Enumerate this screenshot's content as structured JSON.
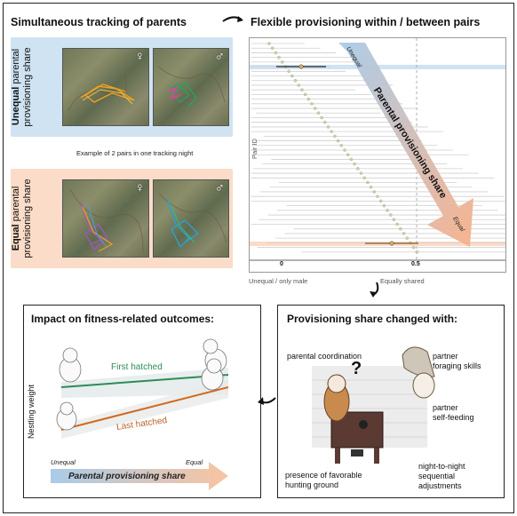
{
  "headings": {
    "tracking": "Simultaneous tracking of parents",
    "flexible": "Flexible provisioning within / between pairs"
  },
  "unequal_box": {
    "label_bold": "Unequal",
    "label_rest": " parental",
    "label_line2": "provisioning share",
    "female_symbol": "♀",
    "male_symbol": "♂",
    "bg_color": "#cfe3f2"
  },
  "caption": "Example of 2 pairs in one tracking night",
  "equal_box": {
    "label_bold": "Equal",
    "label_rest": " parental",
    "label_line2": "provisioning share",
    "female_symbol": "♀",
    "male_symbol": "♂",
    "bg_color": "#fbdcc8"
  },
  "plot": {
    "y_label": "Pair ID",
    "arrow_start": "Unequal",
    "arrow_title": "Parental provisioning share",
    "arrow_end": "Equal",
    "x_ticks": [
      "0",
      "0.5"
    ],
    "x_left_label": "Unequal / only male",
    "x_right_label": "Equally shared"
  },
  "fitness_panel": {
    "title": "Impact on fitness-related outcomes:",
    "y_label": "Nestling weight",
    "first": "First hatched",
    "last": "Last hatched",
    "scale_left": "Unequal",
    "scale_right": "Equal",
    "arrow_label": "Parental provisioning share",
    "first_color": "#2e8b57",
    "last_color": "#d2691e"
  },
  "changed_panel": {
    "title": "Provisioning share changed with:",
    "coordination": "parental coordination",
    "partner_foraging_1": "partner",
    "partner_foraging_2": "foraging skills",
    "partner_self_1": "partner",
    "partner_self_2": "self-feeding",
    "hunting_1": "presence of favorable",
    "hunting_2": "hunting ground",
    "night_1": "night-to-night",
    "night_2": "sequential",
    "night_3": "adjustments",
    "question": "?"
  }
}
